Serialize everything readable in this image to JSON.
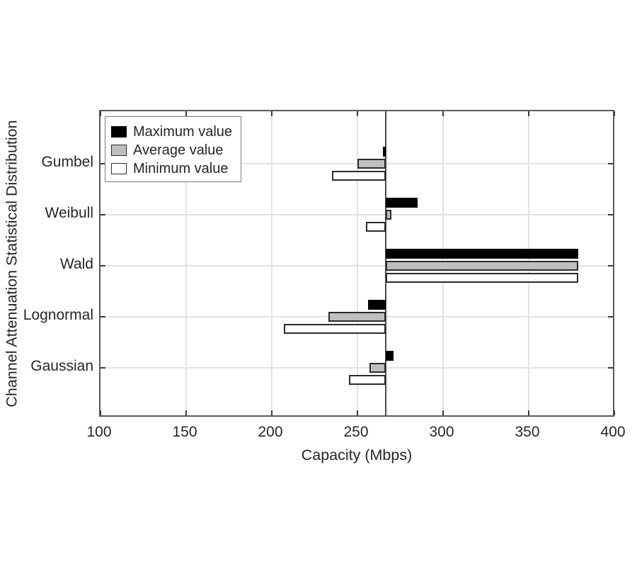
{
  "figure": {
    "background": "#ffffff"
  },
  "chart_data": {
    "type": "bar",
    "orientation": "horizontal",
    "title": "",
    "xlabel": "Capacity (Mbps)",
    "ylabel": "Channel Attenuation Statistical Distribution",
    "categories": [
      "Gumbel",
      "Weibull",
      "Wald",
      "Lognormal",
      "Gaussian"
    ],
    "series": [
      {
        "name": "Maximum value",
        "fill": "#000000",
        "edge": "#000000",
        "values": [
          265,
          285,
          379,
          256,
          271
        ]
      },
      {
        "name": "Average value",
        "fill": "#bfbfbf",
        "edge": "#2b2b2b",
        "values": [
          250,
          270,
          379,
          233,
          257
        ]
      },
      {
        "name": "Minimum value",
        "fill": "#ffffff",
        "edge": "#2b2b2b",
        "values": [
          235,
          255,
          379,
          207,
          245
        ]
      }
    ],
    "base_value": 266.5,
    "xlim": [
      100,
      400
    ],
    "xticks": [
      "100",
      "150",
      "200",
      "250",
      "300",
      "350",
      "400"
    ],
    "grid": true,
    "legend_position": "top-left"
  },
  "colors": {
    "grid": "#e3e3e3",
    "axis_border": "#5a5a5a",
    "tick": "#3a3a3a",
    "baseline": "#4a4a4a",
    "text": "#262626",
    "legend_border": "#7a7a7a"
  }
}
